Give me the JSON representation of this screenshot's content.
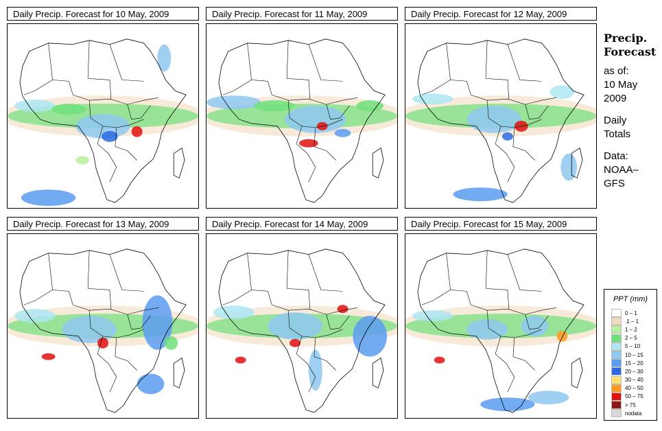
{
  "panels": [
    {
      "title": "Daily Precip. Forecast for  10 May, 2009"
    },
    {
      "title": "Daily Precip. Forecast for  11 May, 2009"
    },
    {
      "title": "Daily Precip. Forecast for  12 May, 2009"
    },
    {
      "title": "Daily Precip. Forecast for  13 May, 2009"
    },
    {
      "title": "Daily Precip. Forecast for  14 May, 2009"
    },
    {
      "title": "Daily Precip. Forecast for  15 May, 2009"
    }
  ],
  "side": {
    "title_line1": "Precip.",
    "title_line2": "Forecast",
    "asof": "as of:",
    "date_line1": "10 May",
    "date_line2": "2009",
    "daily_line1": "Daily",
    "daily_line2": "Totals",
    "data_line1": "Data:",
    "data_line2": "NOAA–",
    "data_line3": "GFS"
  },
  "legend": {
    "title": "PPT (mm)",
    "items": [
      {
        "label": "0 – 1",
        "color": "#ffffff"
      },
      {
        "label": ".1 – 1",
        "color": "#f2dcc0"
      },
      {
        "label": "1 – 2",
        "color": "#b8f0a0"
      },
      {
        "label": "2 – 5",
        "color": "#6fe07a"
      },
      {
        "label": "5 – 10",
        "color": "#aee6f2"
      },
      {
        "label": "10 – 15",
        "color": "#8ec8f0"
      },
      {
        "label": "15 – 20",
        "color": "#5a9cf0"
      },
      {
        "label": "20 – 30",
        "color": "#2a6ae0"
      },
      {
        "label": "30 – 40",
        "color": "#ffe070"
      },
      {
        "label": "40 – 50",
        "color": "#ff9a20"
      },
      {
        "label": "50 – 75",
        "color": "#e01010"
      },
      {
        "label": "> 75",
        "color": "#8a1a1a"
      },
      {
        "label": "nodata",
        "color": "#d8d8d8"
      }
    ]
  }
}
